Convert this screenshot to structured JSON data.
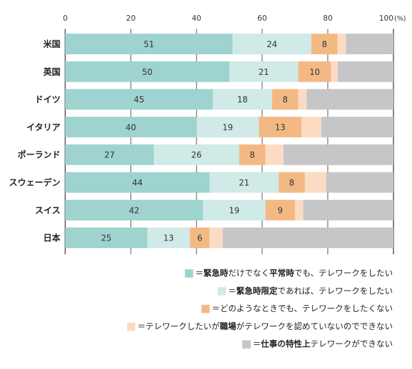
{
  "chart_data": {
    "type": "bar",
    "orientation": "horizontal",
    "stacked": true,
    "unit": "(%)",
    "xlim": [
      0,
      100
    ],
    "xticks": [
      "0",
      "20",
      "40",
      "60",
      "80",
      "100"
    ],
    "categories": [
      "米国",
      "英国",
      "ドイツ",
      "イタリア",
      "ポーランド",
      "スウェーデン",
      "スイス",
      "日本"
    ],
    "series": [
      {
        "key": "s1",
        "color": "#9ed3cf",
        "values": [
          51,
          50,
          45,
          40,
          27,
          44,
          42,
          25
        ],
        "labels": [
          "51",
          "50",
          "45",
          "40",
          "27",
          "44",
          "42",
          "25"
        ]
      },
      {
        "key": "s2",
        "color": "#cfeae7",
        "values": [
          24,
          21,
          18,
          19,
          26,
          21,
          19,
          13
        ],
        "labels": [
          "24",
          "21",
          "18",
          "19",
          "26",
          "21",
          "19",
          "13"
        ]
      },
      {
        "key": "s3",
        "color": "#f3b985",
        "values": [
          8,
          10,
          8,
          13,
          8,
          8,
          9,
          6
        ],
        "labels": [
          "8",
          "10",
          "8",
          "13",
          "8",
          "8",
          "9",
          "6"
        ]
      },
      {
        "key": "s4",
        "color": "#fbdcc3",
        "values": [
          2.5,
          2,
          2.5,
          6,
          5.5,
          6.5,
          2.5,
          4
        ],
        "labels": [
          "",
          "",
          "",
          "",
          "",
          "",
          "",
          ""
        ]
      },
      {
        "key": "s5",
        "color": "#c6c6c9",
        "values": [
          14.5,
          17,
          26.5,
          22,
          33.5,
          20.5,
          27.5,
          52
        ],
        "labels": [
          "",
          "",
          "",
          "",
          "",
          "",
          "",
          ""
        ]
      }
    ],
    "legend": [
      {
        "parts": [
          {
            "t": "＝",
            "b": false
          },
          {
            "t": "緊急時",
            "b": true
          },
          {
            "t": "だけでなく",
            "b": false
          },
          {
            "t": "平常時",
            "b": true
          },
          {
            "t": "でも、テレワークをしたい",
            "b": false
          }
        ]
      },
      {
        "parts": [
          {
            "t": "＝",
            "b": false
          },
          {
            "t": "緊急時限定",
            "b": true
          },
          {
            "t": "であれば、テレワークをしたい",
            "b": false
          }
        ]
      },
      {
        "parts": [
          {
            "t": "＝どのようなときでも、テレワークをしたくない",
            "b": false
          }
        ]
      },
      {
        "parts": [
          {
            "t": "＝テレワークしたいが",
            "b": false
          },
          {
            "t": "職場",
            "b": true
          },
          {
            "t": "がテレワークを認めていないのでできない",
            "b": false
          }
        ]
      },
      {
        "parts": [
          {
            "t": "＝",
            "b": false
          },
          {
            "t": "仕事の特性上",
            "b": true
          },
          {
            "t": "テレワークができない",
            "b": false
          }
        ]
      }
    ]
  }
}
